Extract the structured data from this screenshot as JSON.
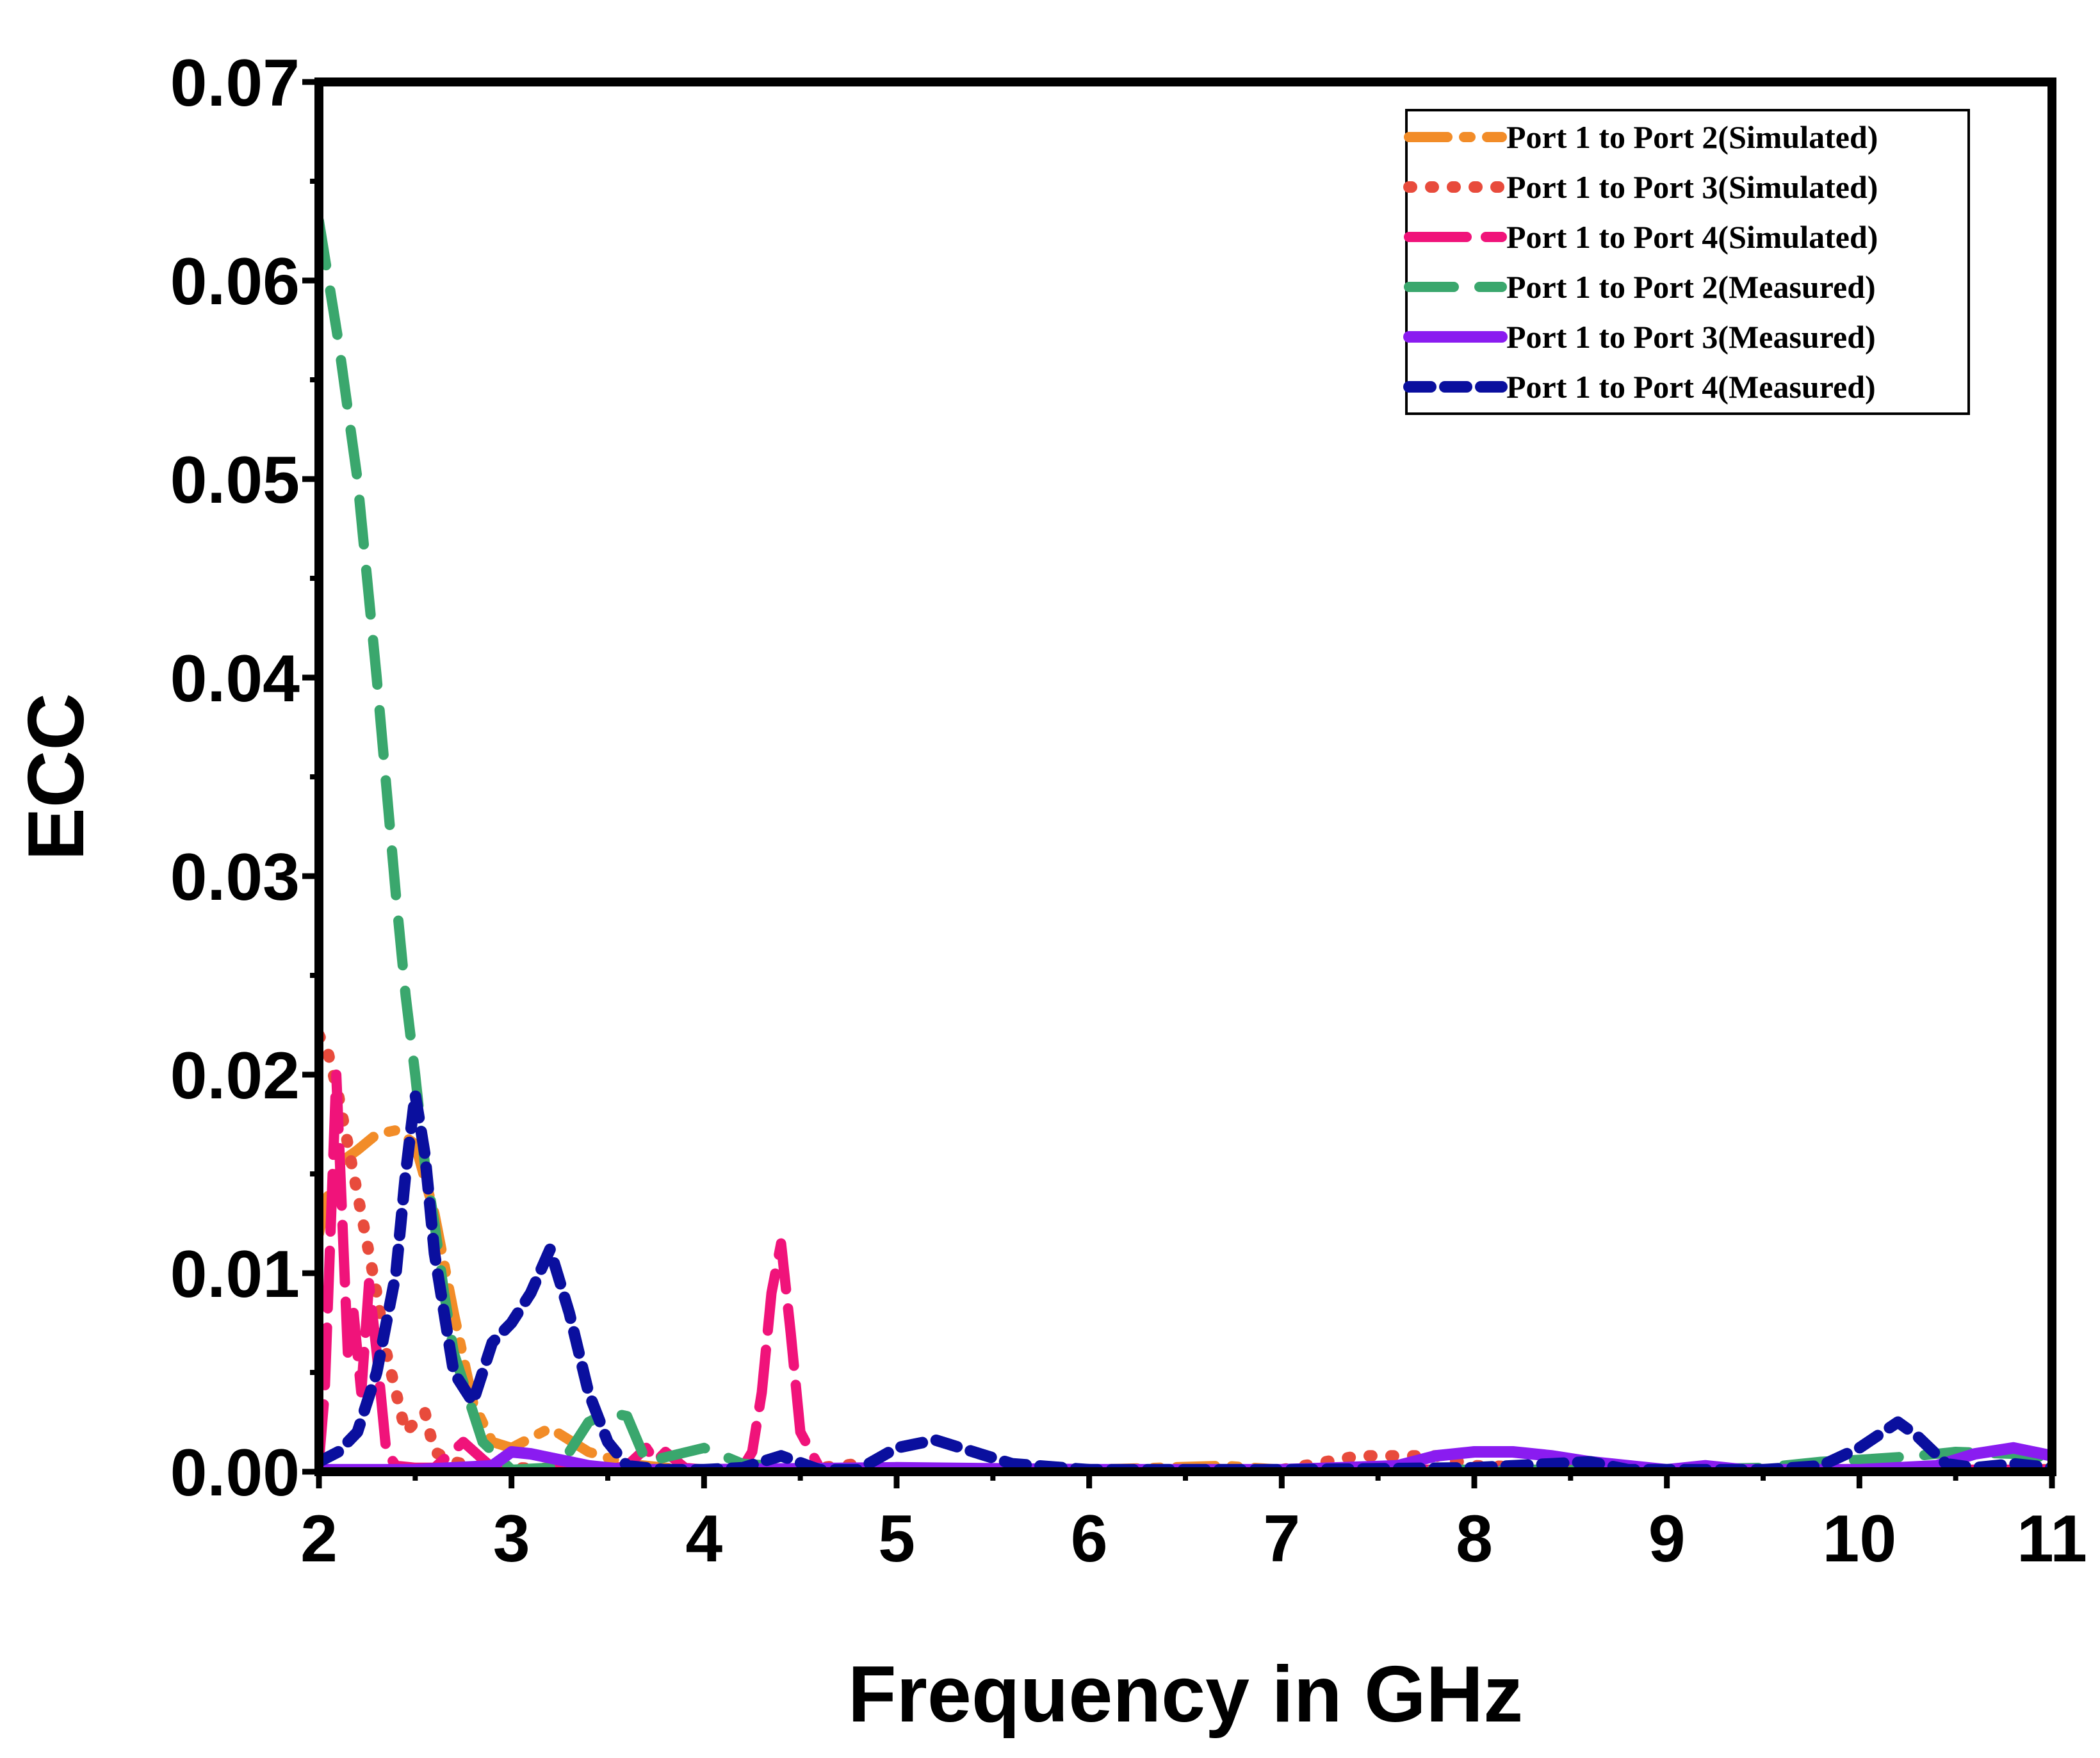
{
  "chart_data": {
    "type": "line",
    "title": "",
    "xlabel": "Frequency in GHz",
    "ylabel": "ECC",
    "xlim": [
      2,
      11
    ],
    "ylim": [
      0,
      0.07
    ],
    "xticks": [
      "2",
      "3",
      "4",
      "5",
      "6",
      "7",
      "8",
      "9",
      "10",
      "11"
    ],
    "yticks": [
      "0.00",
      "0.01",
      "0.02",
      "0.03",
      "0.04",
      "0.05",
      "0.06",
      "0.07"
    ],
    "legend_position": "top-right",
    "series": [
      {
        "name": "Port 1 to Port 2(Simulated)",
        "color": "#f28c28",
        "dash": "dash-dot",
        "x": [
          2.0,
          2.05,
          2.1,
          2.2,
          2.3,
          2.4,
          2.5,
          2.6,
          2.7,
          2.8,
          2.9,
          3.0,
          3.2,
          3.4,
          3.6,
          3.8,
          4.0,
          4.5,
          5.0,
          6.0,
          6.7,
          7.0,
          8.0,
          9.0,
          10.0,
          11.0
        ],
        "y": [
          0.012,
          0.014,
          0.0155,
          0.0162,
          0.017,
          0.0172,
          0.0165,
          0.013,
          0.008,
          0.0035,
          0.0015,
          0.0012,
          0.0022,
          0.001,
          0.0004,
          0.0002,
          0.0001,
          0.0001,
          0.0001,
          0.0001,
          0.0003,
          0.0001,
          0.0001,
          0.0001,
          0.0001,
          0.0001
        ]
      },
      {
        "name": "Port 1 to Port 3(Simulated)",
        "color": "#e84b3c",
        "dash": "dot",
        "x": [
          2.0,
          2.05,
          2.1,
          2.15,
          2.2,
          2.25,
          2.3,
          2.35,
          2.4,
          2.45,
          2.5,
          2.55,
          2.6,
          2.7,
          2.8,
          3.0,
          3.5,
          4.0,
          4.5,
          4.8,
          5.0,
          6.0,
          7.0,
          7.4,
          7.8,
          8.0,
          9.0,
          10.0,
          11.0
        ],
        "y": [
          0.022,
          0.021,
          0.019,
          0.0165,
          0.014,
          0.0115,
          0.009,
          0.006,
          0.004,
          0.002,
          0.0025,
          0.003,
          0.001,
          0.0005,
          0.0003,
          0.0002,
          0.0001,
          0.0001,
          0.0001,
          0.0004,
          0.0001,
          0.0001,
          0.0001,
          0.0008,
          0.0008,
          0.0003,
          0.0001,
          0.0001,
          0.0001
        ]
      },
      {
        "name": "Port 1 to Port 4(Simulated)",
        "color": "#f0137a",
        "dash": "long-dash",
        "x": [
          2.0,
          2.03,
          2.06,
          2.09,
          2.12,
          2.15,
          2.18,
          2.22,
          2.26,
          2.3,
          2.35,
          2.4,
          2.5,
          2.6,
          2.75,
          2.9,
          3.0,
          3.2,
          3.5,
          3.6,
          3.7,
          3.75,
          3.8,
          3.9,
          4.0,
          4.1,
          4.2,
          4.25,
          4.3,
          4.35,
          4.4,
          4.45,
          4.5,
          4.6,
          5.0,
          6.0,
          7.0,
          8.0,
          9.0,
          10.0,
          11.0
        ],
        "y": [
          0.0005,
          0.004,
          0.012,
          0.02,
          0.013,
          0.006,
          0.008,
          0.004,
          0.0095,
          0.006,
          0.001,
          0.0003,
          0.0002,
          0.0002,
          0.0015,
          0.0002,
          0.0001,
          0.0001,
          0.0001,
          0.0003,
          0.0012,
          0.0005,
          0.001,
          0.0002,
          0.0001,
          0.0001,
          0.0002,
          0.001,
          0.004,
          0.009,
          0.0115,
          0.007,
          0.002,
          0.0002,
          0.0001,
          0.0001,
          0.0001,
          0.0001,
          0.0001,
          0.0001,
          0.0001
        ]
      },
      {
        "name": "Port 1 to Port 2(Measured)",
        "color": "#3aa76d",
        "dash": "dash",
        "x": [
          2.0,
          2.1,
          2.2,
          2.3,
          2.4,
          2.45,
          2.5,
          2.55,
          2.6,
          2.65,
          2.7,
          2.8,
          2.85,
          3.0,
          3.2,
          3.3,
          3.4,
          3.5,
          3.6,
          3.7,
          4.0,
          4.2,
          4.5,
          5.0,
          6.0,
          7.0,
          8.0,
          9.0,
          9.5,
          9.8,
          10.0,
          10.3,
          10.5,
          10.8,
          11.0
        ],
        "y": [
          0.063,
          0.057,
          0.05,
          0.04,
          0.029,
          0.024,
          0.02,
          0.0155,
          0.0125,
          0.009,
          0.006,
          0.003,
          0.0015,
          0.0001,
          0.0002,
          0.001,
          0.0025,
          0.003,
          0.0028,
          0.0005,
          0.0012,
          0.0004,
          0.0002,
          0.0001,
          0.0001,
          0.0001,
          0.0001,
          0.0001,
          0.0002,
          0.0005,
          0.0006,
          0.0008,
          0.001,
          0.0009,
          0.0007
        ]
      },
      {
        "name": "Port 1 to Port 3(Measured)",
        "color": "#8a1cf0",
        "dash": "solid",
        "x": [
          2.0,
          2.5,
          2.9,
          3.0,
          3.1,
          3.2,
          3.3,
          3.4,
          3.6,
          4.0,
          5.0,
          6.0,
          7.0,
          7.6,
          7.8,
          8.0,
          8.2,
          8.4,
          8.6,
          8.8,
          9.0,
          9.2,
          9.4,
          10.0,
          10.4,
          10.6,
          10.8,
          11.0
        ],
        "y": [
          0.0001,
          0.0001,
          0.0003,
          0.001,
          0.0009,
          0.0007,
          0.0005,
          0.0003,
          0.0001,
          0.0001,
          0.0002,
          0.0001,
          0.0001,
          0.0003,
          0.0008,
          0.001,
          0.001,
          0.0008,
          0.0005,
          0.0003,
          0.0001,
          0.0003,
          0.0001,
          0.0001,
          0.0003,
          0.0009,
          0.0012,
          0.0008
        ]
      },
      {
        "name": "Port 1 to Port 4(Measured)",
        "color": "#0a0f9e",
        "dash": "short-dash",
        "x": [
          2.0,
          2.1,
          2.2,
          2.3,
          2.4,
          2.45,
          2.5,
          2.55,
          2.6,
          2.7,
          2.8,
          2.9,
          3.0,
          3.1,
          3.2,
          3.3,
          3.4,
          3.5,
          3.6,
          3.8,
          4.0,
          4.2,
          4.4,
          4.6,
          4.8,
          5.0,
          5.2,
          5.4,
          5.6,
          6.0,
          7.0,
          8.0,
          8.6,
          8.8,
          9.0,
          9.5,
          9.8,
          10.0,
          10.2,
          10.3,
          10.45,
          10.6,
          10.8,
          11.0
        ],
        "y": [
          0.0005,
          0.001,
          0.002,
          0.005,
          0.01,
          0.015,
          0.019,
          0.016,
          0.011,
          0.005,
          0.0035,
          0.0065,
          0.0075,
          0.009,
          0.0112,
          0.008,
          0.004,
          0.0015,
          0.0003,
          0.0001,
          0.0001,
          0.0002,
          0.0008,
          0.0001,
          0.0001,
          0.0012,
          0.0016,
          0.001,
          0.0004,
          0.0001,
          0.0001,
          0.0002,
          0.0005,
          0.0001,
          0.0001,
          0.0001,
          0.0003,
          0.0012,
          0.0025,
          0.0018,
          0.0004,
          0.0002,
          0.0004,
          0.0002
        ]
      }
    ]
  }
}
